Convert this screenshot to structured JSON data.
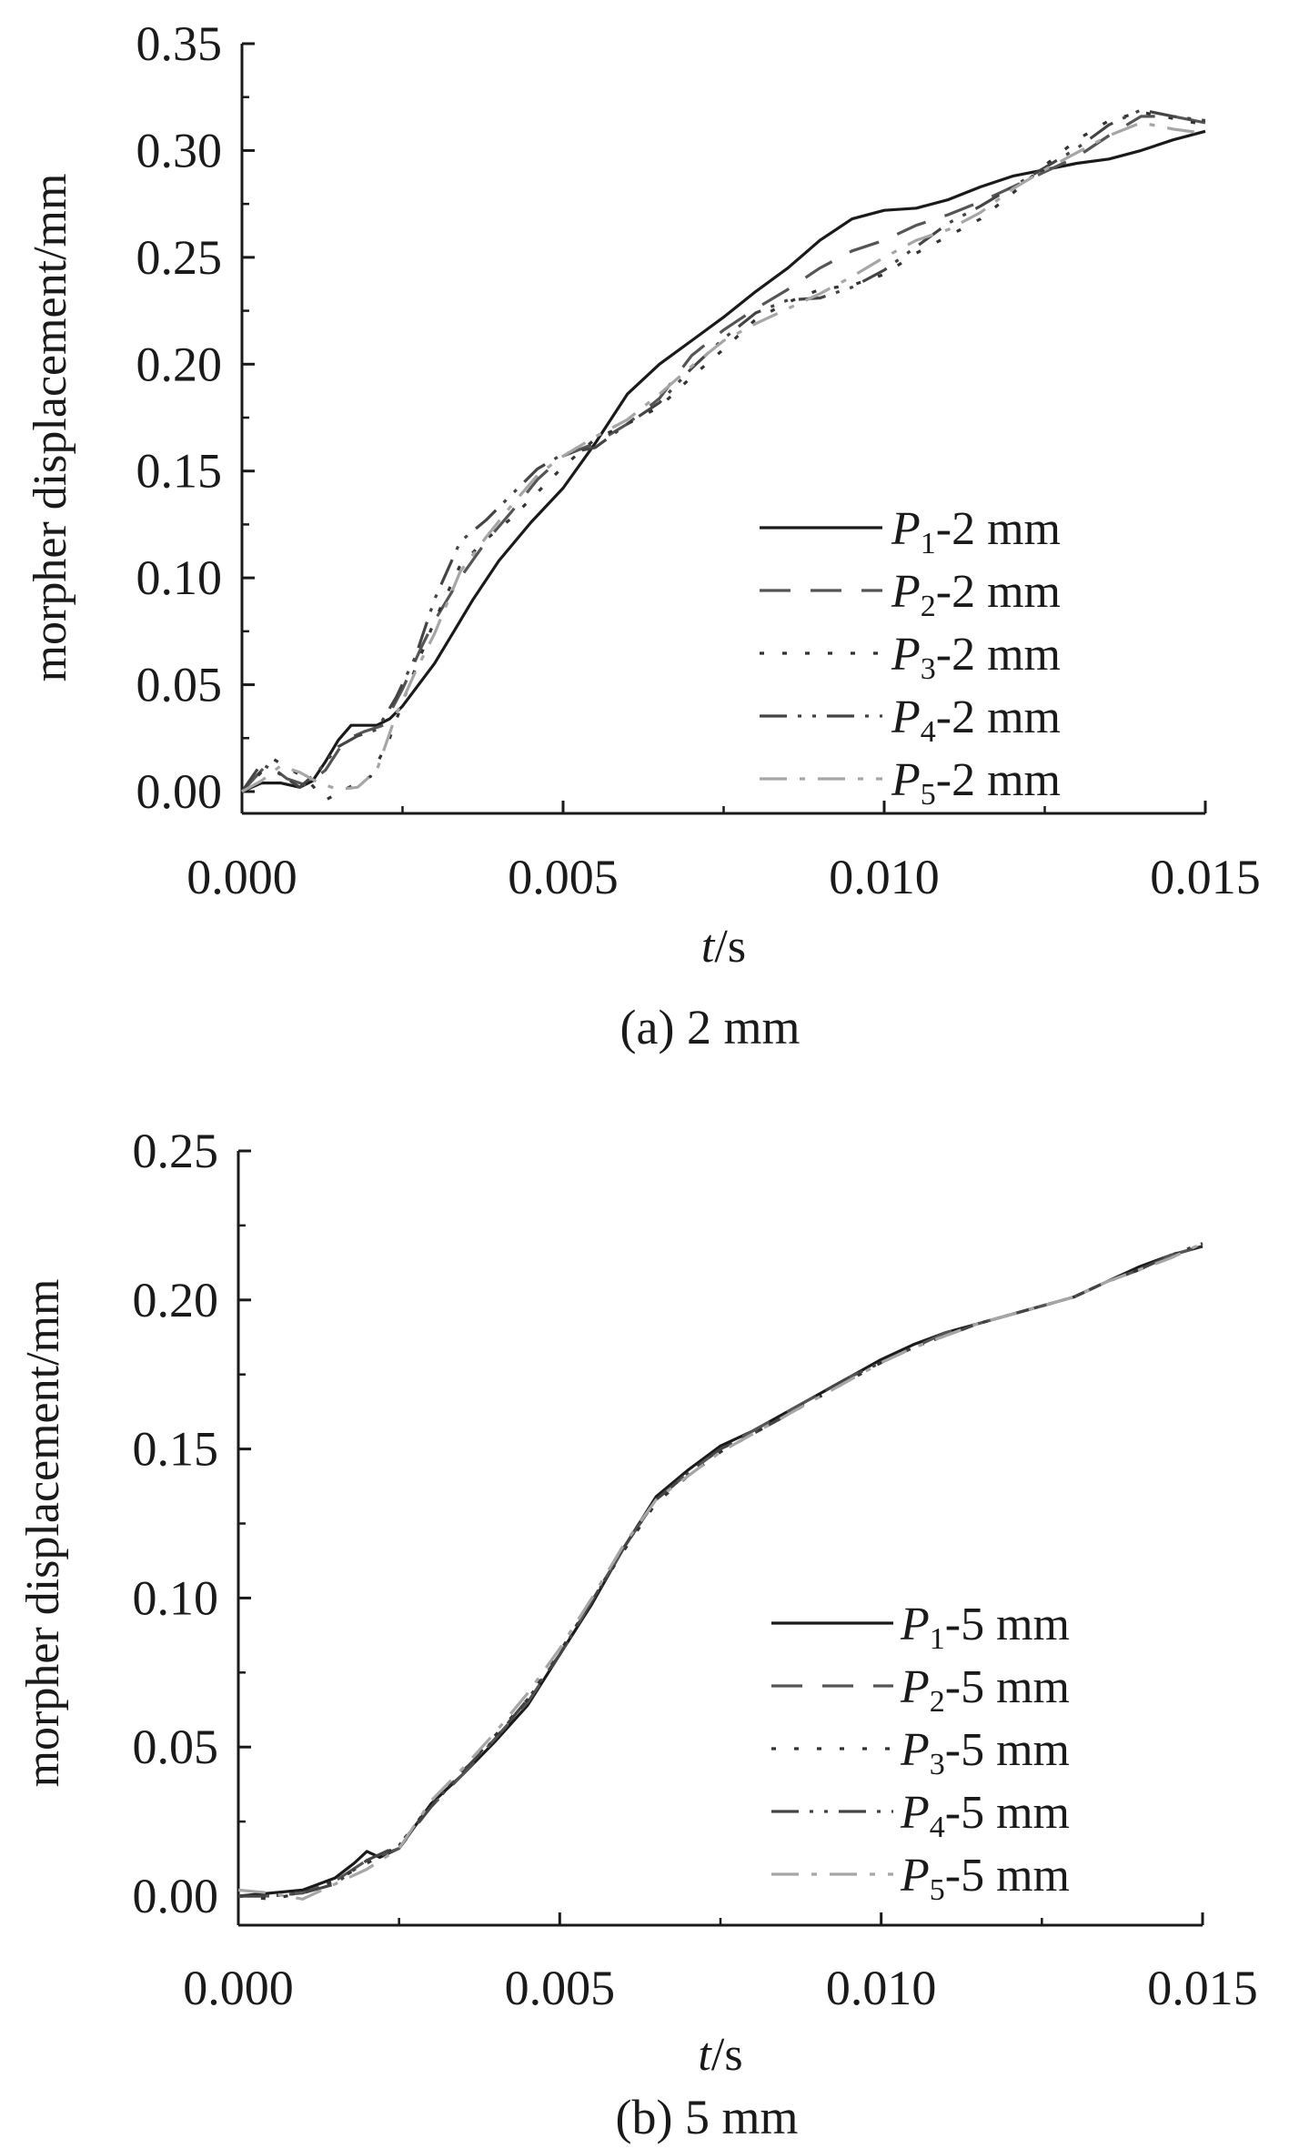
{
  "chart_data": [
    {
      "type": "line",
      "caption": "(a) 2 mm",
      "xlabel_italic": "t",
      "xlabel_rest": "/s",
      "ylabel": "morpher displacement/mm",
      "xlim": [
        0,
        0.015
      ],
      "ylim": [
        -0.01,
        0.35
      ],
      "xticks": [
        "0.000",
        "0.005",
        "0.010",
        "0.015"
      ],
      "xtick_values": [
        0,
        0.005,
        0.01,
        0.015
      ],
      "yticks": [
        "0.00",
        "0.05",
        "0.10",
        "0.15",
        "0.20",
        "0.25",
        "0.30",
        "0.35"
      ],
      "ytick_values": [
        0,
        0.05,
        0.1,
        0.15,
        0.2,
        0.25,
        0.3,
        0.35
      ],
      "grid": false,
      "legend_position": "lower-right",
      "series": [
        {
          "name_p": "P",
          "name_sub": "1",
          "name_rest": "-2 mm",
          "color": "#1a1a1a",
          "dash": "none",
          "x": [
            0,
            0.0003,
            0.0006,
            0.0009,
            0.0011,
            0.0013,
            0.0015,
            0.0017,
            0.0019,
            0.0021,
            0.0023,
            0.0025,
            0.0027,
            0.003,
            0.0033,
            0.0036,
            0.004,
            0.0045,
            0.005,
            0.0055,
            0.006,
            0.0065,
            0.007,
            0.0075,
            0.008,
            0.0085,
            0.009,
            0.0095,
            0.01,
            0.0105,
            0.011,
            0.0115,
            0.012,
            0.0125,
            0.013,
            0.0135,
            0.014,
            0.0145,
            0.015
          ],
          "y": [
            0.0,
            0.004,
            0.004,
            0.002,
            0.005,
            0.014,
            0.024,
            0.031,
            0.031,
            0.031,
            0.034,
            0.04,
            0.048,
            0.06,
            0.075,
            0.09,
            0.108,
            0.126,
            0.142,
            0.163,
            0.186,
            0.2,
            0.211,
            0.222,
            0.234,
            0.245,
            0.258,
            0.268,
            0.272,
            0.273,
            0.277,
            0.283,
            0.288,
            0.291,
            0.294,
            0.296,
            0.3,
            0.305,
            0.309
          ]
        },
        {
          "name_p": "P",
          "name_sub": "2",
          "name_rest": "-2 mm",
          "color": "#555555",
          "dash": "34,22",
          "x": [
            0,
            0.0004,
            0.0007,
            0.001,
            0.0013,
            0.0016,
            0.0019,
            0.0022,
            0.0025,
            0.0028,
            0.003,
            0.0034,
            0.0038,
            0.0042,
            0.0046,
            0.005,
            0.0055,
            0.006,
            0.0065,
            0.007,
            0.0075,
            0.008,
            0.0085,
            0.009,
            0.0095,
            0.01,
            0.0105,
            0.011,
            0.0115,
            0.012,
            0.0125,
            0.013,
            0.0135,
            0.014,
            0.0145,
            0.015
          ],
          "y": [
            0.0,
            0.013,
            0.006,
            0.003,
            0.01,
            0.024,
            0.028,
            0.031,
            0.048,
            0.068,
            0.08,
            0.1,
            0.117,
            0.131,
            0.146,
            0.157,
            0.163,
            0.172,
            0.184,
            0.204,
            0.216,
            0.226,
            0.235,
            0.245,
            0.253,
            0.258,
            0.265,
            0.27,
            0.276,
            0.283,
            0.29,
            0.297,
            0.307,
            0.316,
            0.316,
            0.313
          ]
        },
        {
          "name_p": "P",
          "name_sub": "3",
          "name_rest": "-2 mm",
          "color": "#333333",
          "dash": "5,20",
          "x": [
            0,
            0.0005,
            0.001,
            0.0013,
            0.0016,
            0.002,
            0.0023,
            0.0026,
            0.003,
            0.0034,
            0.0038,
            0.0042,
            0.0046,
            0.005,
            0.0055,
            0.006,
            0.0065,
            0.007,
            0.0075,
            0.008,
            0.0085,
            0.009,
            0.0095,
            0.01,
            0.0105,
            0.011,
            0.0115,
            0.012,
            0.0125,
            0.013,
            0.0135,
            0.014,
            0.0145,
            0.015
          ],
          "y": [
            0.0,
            0.015,
            0.006,
            -0.004,
            0.001,
            0.007,
            0.025,
            0.05,
            0.08,
            0.106,
            0.118,
            0.128,
            0.14,
            0.152,
            0.165,
            0.172,
            0.18,
            0.194,
            0.207,
            0.221,
            0.229,
            0.235,
            0.237,
            0.242,
            0.252,
            0.26,
            0.268,
            0.28,
            0.293,
            0.305,
            0.314,
            0.318,
            0.315,
            0.312
          ]
        },
        {
          "name_p": "P",
          "name_sub": "4",
          "name_rest": "-2 mm",
          "color": "#444444",
          "dash": "30,12,4,12,4,12",
          "x": [
            0,
            0.0003,
            0.0006,
            0.0009,
            0.0012,
            0.0015,
            0.0018,
            0.0021,
            0.0024,
            0.0027,
            0.003,
            0.0034,
            0.0038,
            0.0042,
            0.0046,
            0.005,
            0.0055,
            0.006,
            0.0065,
            0.007,
            0.0075,
            0.008,
            0.0085,
            0.009,
            0.0095,
            0.01,
            0.0105,
            0.011,
            0.0115,
            0.012,
            0.0125,
            0.013,
            0.0135,
            0.014,
            0.0145,
            0.015
          ],
          "y": [
            0.0,
            0.013,
            0.008,
            0.002,
            0.01,
            0.021,
            0.026,
            0.029,
            0.044,
            0.063,
            0.09,
            0.117,
            0.127,
            0.139,
            0.151,
            0.158,
            0.161,
            0.172,
            0.182,
            0.198,
            0.212,
            0.224,
            0.23,
            0.231,
            0.236,
            0.244,
            0.255,
            0.266,
            0.274,
            0.283,
            0.292,
            0.301,
            0.312,
            0.319,
            0.316,
            0.314
          ]
        },
        {
          "name_p": "P",
          "name_sub": "5",
          "name_rest": "-2 mm",
          "color": "#a6a6a6",
          "dash": "30,14,6,14",
          "x": [
            0,
            0.0003,
            0.0006,
            0.0009,
            0.0012,
            0.0015,
            0.0018,
            0.0021,
            0.0024,
            0.0027,
            0.003,
            0.0034,
            0.0038,
            0.0042,
            0.0046,
            0.005,
            0.0055,
            0.006,
            0.0065,
            0.007,
            0.0075,
            0.008,
            0.0085,
            0.009,
            0.0095,
            0.01,
            0.0105,
            0.011,
            0.0115,
            0.012,
            0.0125,
            0.013,
            0.0135,
            0.014,
            0.0145,
            0.015
          ],
          "y": [
            0.0,
            0.005,
            0.012,
            0.009,
            0.004,
            0.001,
            0.002,
            0.01,
            0.036,
            0.056,
            0.074,
            0.103,
            0.119,
            0.134,
            0.148,
            0.157,
            0.166,
            0.174,
            0.186,
            0.199,
            0.211,
            0.219,
            0.226,
            0.233,
            0.241,
            0.25,
            0.258,
            0.263,
            0.271,
            0.282,
            0.291,
            0.299,
            0.307,
            0.313,
            0.31,
            0.308
          ]
        }
      ],
      "legend_text_color": "#1a1a1a"
    },
    {
      "type": "line",
      "caption": "(b) 5 mm",
      "xlabel_italic": "t",
      "xlabel_rest": "/s",
      "ylabel": "morpher displacement/mm",
      "xlim": [
        0,
        0.015
      ],
      "ylim": [
        -0.01,
        0.25
      ],
      "xticks": [
        "0.000",
        "0.005",
        "0.010",
        "0.015"
      ],
      "xtick_values": [
        0,
        0.005,
        0.01,
        0.015
      ],
      "yticks": [
        "0.00",
        "0.05",
        "0.10",
        "0.15",
        "0.20",
        "0.25"
      ],
      "ytick_values": [
        0,
        0.05,
        0.1,
        0.15,
        0.2,
        0.25
      ],
      "grid": false,
      "legend_position": "lower-right",
      "series": [
        {
          "name_p": "P",
          "name_sub": "1",
          "name_rest": "-5 mm",
          "color": "#1a1a1a",
          "dash": "none",
          "x": [
            0,
            0.0005,
            0.001,
            0.0015,
            0.0018,
            0.002,
            0.0022,
            0.0025,
            0.003,
            0.0035,
            0.004,
            0.0045,
            0.005,
            0.0055,
            0.006,
            0.0065,
            0.007,
            0.0075,
            0.008,
            0.0085,
            0.009,
            0.0095,
            0.01,
            0.0105,
            0.011,
            0.0115,
            0.012,
            0.0125,
            0.013,
            0.0135,
            0.014,
            0.0145,
            0.015
          ],
          "y": [
            0.0,
            0.001,
            0.002,
            0.006,
            0.011,
            0.015,
            0.013,
            0.016,
            0.031,
            0.041,
            0.052,
            0.064,
            0.081,
            0.098,
            0.117,
            0.134,
            0.143,
            0.151,
            0.156,
            0.162,
            0.168,
            0.174,
            0.18,
            0.185,
            0.189,
            0.192,
            0.195,
            0.198,
            0.201,
            0.206,
            0.211,
            0.215,
            0.218
          ]
        },
        {
          "name_p": "P",
          "name_sub": "2",
          "name_rest": "-5 mm",
          "color": "#555555",
          "dash": "34,22",
          "x": [
            0,
            0.0005,
            0.001,
            0.0015,
            0.002,
            0.0025,
            0.003,
            0.0035,
            0.004,
            0.0045,
            0.005,
            0.0055,
            0.006,
            0.0065,
            0.007,
            0.0075,
            0.008,
            0.0085,
            0.009,
            0.0095,
            0.01,
            0.0105,
            0.011,
            0.0115,
            0.012,
            0.0125,
            0.013,
            0.0135,
            0.014,
            0.0145,
            0.015
          ],
          "y": [
            0.0,
            0.0,
            0.001,
            0.005,
            0.012,
            0.016,
            0.03,
            0.041,
            0.053,
            0.065,
            0.081,
            0.099,
            0.117,
            0.133,
            0.142,
            0.15,
            0.156,
            0.162,
            0.168,
            0.174,
            0.179,
            0.184,
            0.189,
            0.192,
            0.195,
            0.198,
            0.201,
            0.206,
            0.21,
            0.215,
            0.218
          ]
        },
        {
          "name_p": "P",
          "name_sub": "3",
          "name_rest": "-5 mm",
          "color": "#333333",
          "dash": "5,20",
          "x": [
            0,
            0.0005,
            0.001,
            0.0015,
            0.002,
            0.0025,
            0.003,
            0.0035,
            0.004,
            0.0045,
            0.005,
            0.0055,
            0.006,
            0.0065,
            0.007,
            0.0075,
            0.008,
            0.0085,
            0.009,
            0.0095,
            0.01,
            0.0105,
            0.011,
            0.0115,
            0.012,
            0.0125,
            0.013,
            0.0135,
            0.014,
            0.0145,
            0.015
          ],
          "y": [
            0.0,
            -0.001,
            0.001,
            0.005,
            0.011,
            0.017,
            0.031,
            0.042,
            0.054,
            0.066,
            0.082,
            0.099,
            0.116,
            0.132,
            0.141,
            0.149,
            0.155,
            0.161,
            0.167,
            0.173,
            0.179,
            0.184,
            0.188,
            0.192,
            0.195,
            0.198,
            0.201,
            0.206,
            0.21,
            0.215,
            0.218
          ]
        },
        {
          "name_p": "P",
          "name_sub": "4",
          "name_rest": "-5 mm",
          "color": "#444444",
          "dash": "30,12,4,12,4,12",
          "x": [
            0,
            0.0005,
            0.001,
            0.0015,
            0.002,
            0.0025,
            0.003,
            0.0035,
            0.004,
            0.0045,
            0.005,
            0.0055,
            0.006,
            0.0065,
            0.007,
            0.0075,
            0.008,
            0.0085,
            0.009,
            0.0095,
            0.01,
            0.0105,
            0.011,
            0.0115,
            0.012,
            0.0125,
            0.013,
            0.0135,
            0.014,
            0.0145,
            0.015
          ],
          "y": [
            0.0,
            0.0,
            0.001,
            0.004,
            0.012,
            0.017,
            0.03,
            0.042,
            0.053,
            0.066,
            0.081,
            0.099,
            0.117,
            0.133,
            0.142,
            0.15,
            0.155,
            0.161,
            0.168,
            0.174,
            0.179,
            0.184,
            0.188,
            0.192,
            0.195,
            0.198,
            0.201,
            0.206,
            0.21,
            0.215,
            0.219
          ]
        },
        {
          "name_p": "P",
          "name_sub": "5",
          "name_rest": "-5 mm",
          "color": "#a6a6a6",
          "dash": "30,14,6,14",
          "x": [
            0,
            0.0005,
            0.001,
            0.0015,
            0.002,
            0.0025,
            0.003,
            0.0035,
            0.004,
            0.0045,
            0.005,
            0.0055,
            0.006,
            0.0065,
            0.007,
            0.0075,
            0.008,
            0.0085,
            0.009,
            0.0095,
            0.01,
            0.0105,
            0.011,
            0.0115,
            0.012,
            0.0125,
            0.013,
            0.0135,
            0.014,
            0.0145,
            0.015
          ],
          "y": [
            0.002,
            0.001,
            -0.001,
            0.004,
            0.009,
            0.016,
            0.032,
            0.043,
            0.055,
            0.068,
            0.083,
            0.1,
            0.118,
            0.133,
            0.141,
            0.149,
            0.155,
            0.161,
            0.167,
            0.173,
            0.179,
            0.184,
            0.188,
            0.192,
            0.195,
            0.198,
            0.201,
            0.206,
            0.21,
            0.214,
            0.219
          ]
        }
      ],
      "legend_text_color": "#1a1a1a"
    }
  ]
}
